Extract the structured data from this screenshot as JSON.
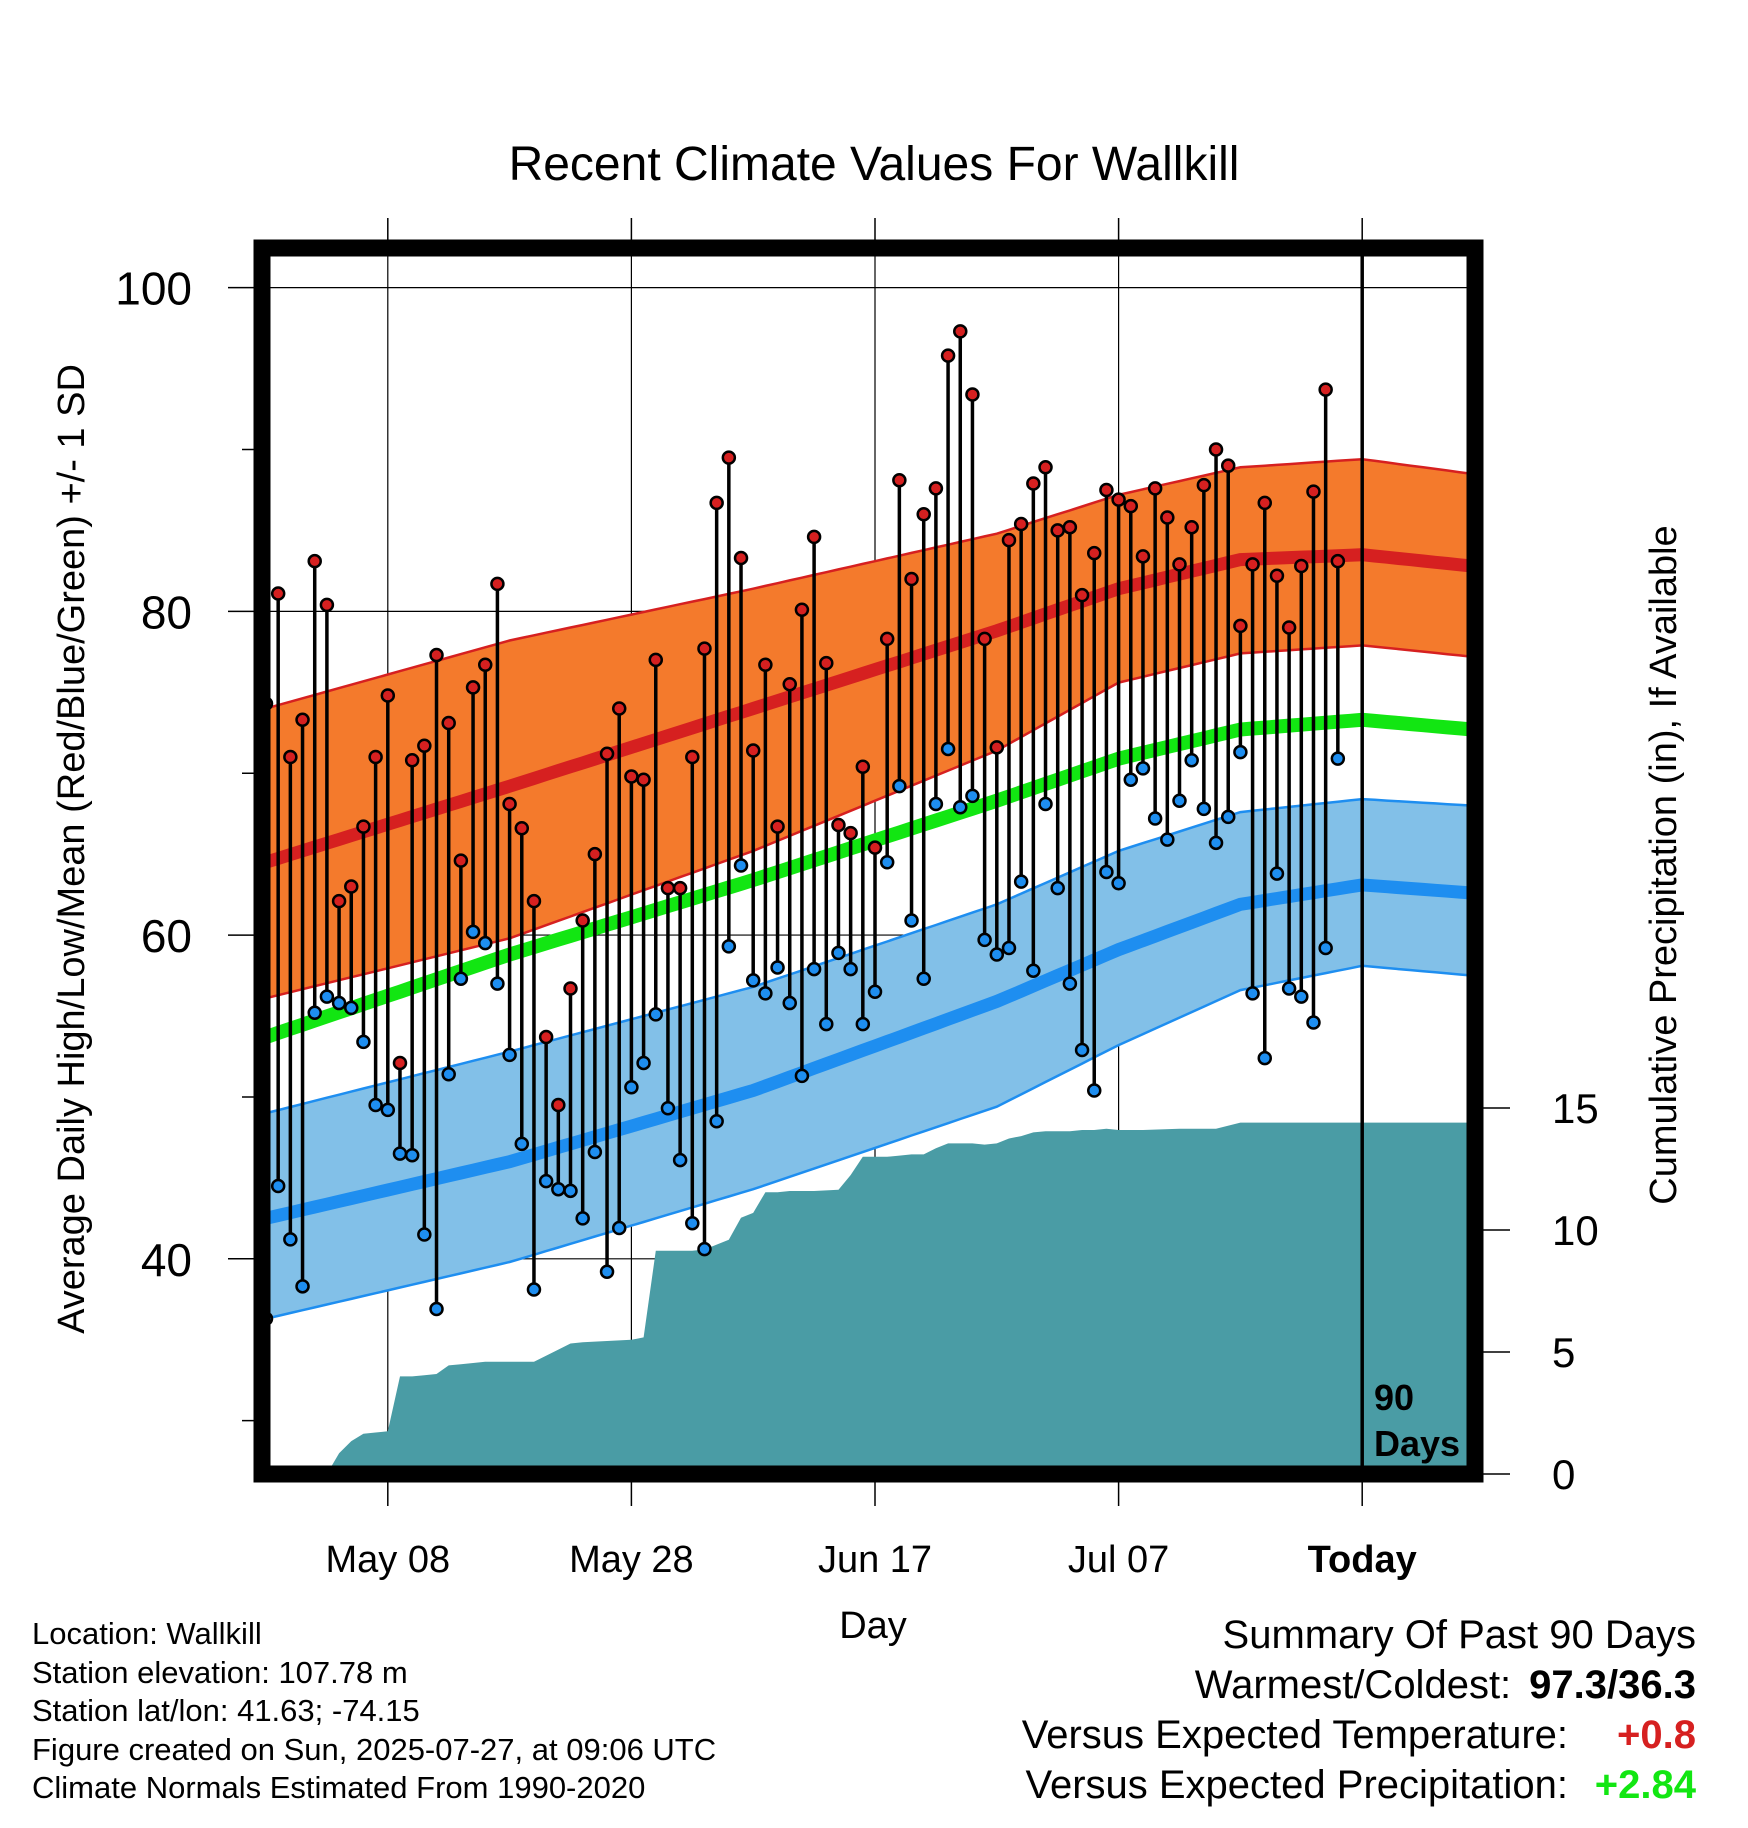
{
  "chart_data": {
    "type": "line",
    "title": "Recent Climate Values For Wallkill",
    "xlabel": "Day",
    "ylabel": "Average Daily High/Low/Mean (Red/Blue/Green) +/- 1 SD",
    "y2label": "Cumulative Precipitation (in), If Available",
    "x_ticks": [
      "May 08",
      "May 28",
      "Jun 17",
      "Jul 07",
      "Today"
    ],
    "y_ticks": [
      "40",
      "60",
      "80",
      "100"
    ],
    "y2_ticks": [
      "0",
      "5",
      "10",
      "15"
    ],
    "today_annotation": [
      "90",
      "Days"
    ],
    "ylim": [
      27,
      103
    ],
    "y2lim": [
      0,
      24.1
    ],
    "grid": true,
    "colors": {
      "high_band": "#f47a2c",
      "high_band_edge": "#d62020",
      "high_normal": "#d62020",
      "low_band": "#82c0e8",
      "low_band_edge": "#1e8ef0",
      "low_normal": "#1e8ef0",
      "mean_normal": "#12e612",
      "precip": "#4a9ca5",
      "high_dot": "#d62020",
      "low_dot": "#1e8ef0"
    },
    "normals": {
      "day_index": [
        0,
        20,
        40,
        60,
        70,
        80,
        90,
        99
      ],
      "high_mean": [
        64.5,
        69.2,
        74.0,
        78.8,
        81.4,
        83.2,
        83.5,
        82.8
      ],
      "high_upper": [
        74.0,
        78.2,
        81.4,
        84.8,
        87.2,
        88.9,
        89.4,
        88.5
      ],
      "high_lower": [
        56.1,
        59.8,
        65.2,
        71.4,
        75.6,
        77.4,
        77.9,
        77.2
      ],
      "mean_normal": [
        53.7,
        58.8,
        63.4,
        68.3,
        70.9,
        72.7,
        73.3,
        72.7
      ],
      "low_mean": [
        42.5,
        46.0,
        50.4,
        55.9,
        59.1,
        61.9,
        63.1,
        62.6
      ],
      "low_upper": [
        49.0,
        52.8,
        56.8,
        61.9,
        65.2,
        67.6,
        68.4,
        68.0
      ],
      "low_lower": [
        36.3,
        39.8,
        44.3,
        49.4,
        53.2,
        56.6,
        58.1,
        57.5
      ]
    },
    "daily_high": [
      74.3,
      81.1,
      71.0,
      73.3,
      83.1,
      80.4,
      62.1,
      63.0,
      66.7,
      71.0,
      74.8,
      52.1,
      70.8,
      71.7,
      77.3,
      73.1,
      64.6,
      75.3,
      76.7,
      81.7,
      68.1,
      66.6,
      62.1,
      53.7,
      49.5,
      56.7,
      60.9,
      65.0,
      71.2,
      74.0,
      69.8,
      69.6,
      77.0,
      62.9,
      62.9,
      71.0,
      77.7,
      86.7,
      89.5,
      83.3,
      71.4,
      76.7,
      66.7,
      75.5,
      80.1,
      84.6,
      76.8,
      66.8,
      66.3,
      70.4,
      65.4,
      78.3,
      88.1,
      82.0,
      86.0,
      87.6,
      95.8,
      97.3,
      93.4,
      78.3,
      71.6,
      84.4,
      85.4,
      87.9,
      88.9,
      85.0,
      85.2,
      81.0,
      83.6,
      87.5,
      86.9,
      86.5,
      83.4,
      87.6,
      85.8,
      82.9,
      85.2,
      87.8,
      90.0,
      89.0,
      79.1,
      82.9,
      86.7,
      82.2,
      79.0,
      82.8,
      87.4,
      93.7,
      83.1
    ],
    "daily_low": [
      36.3,
      44.5,
      41.2,
      38.3,
      55.2,
      56.2,
      55.8,
      55.5,
      53.4,
      49.5,
      49.2,
      46.5,
      46.4,
      41.5,
      36.9,
      51.4,
      57.3,
      60.2,
      59.5,
      57.0,
      52.6,
      47.1,
      38.1,
      44.8,
      44.3,
      44.2,
      42.5,
      46.6,
      39.2,
      41.9,
      50.6,
      52.1,
      55.1,
      49.3,
      46.1,
      42.2,
      40.6,
      48.5,
      59.3,
      64.3,
      57.2,
      56.4,
      58.0,
      55.8,
      51.3,
      57.9,
      54.5,
      58.9,
      57.9,
      54.5,
      56.5,
      64.5,
      69.2,
      60.9,
      57.3,
      68.1,
      71.5,
      67.9,
      68.6,
      59.7,
      58.8,
      59.2,
      63.3,
      57.8,
      68.1,
      62.9,
      57.0,
      52.9,
      50.4,
      63.9,
      63.2,
      69.6,
      70.3,
      67.2,
      65.9,
      68.3,
      70.8,
      67.8,
      65.7,
      67.3,
      71.3,
      56.4,
      52.4,
      63.8,
      56.7,
      56.2,
      54.6,
      59.2,
      70.9,
      66.2
    ]
  },
  "precip_cumulative": {
    "day_index": [
      5,
      6,
      7,
      8,
      9,
      10,
      11,
      12,
      13,
      14,
      15,
      16,
      17,
      18,
      20,
      21,
      22,
      24,
      25,
      26,
      28,
      30,
      31,
      32,
      33,
      34,
      35,
      36,
      38,
      39,
      40,
      41,
      42,
      43,
      45,
      47,
      48,
      49,
      50,
      51,
      52,
      53,
      54,
      55,
      56,
      58,
      59,
      60,
      61,
      62,
      63,
      64,
      65,
      66,
      67,
      68,
      69,
      70,
      72,
      75,
      76,
      78,
      80,
      85,
      90,
      99
    ],
    "values": [
      0.0,
      0.85,
      1.35,
      1.65,
      1.7,
      1.75,
      4.0,
      4.0,
      4.05,
      4.1,
      4.45,
      4.5,
      4.55,
      4.6,
      4.6,
      4.6,
      4.6,
      5.1,
      5.35,
      5.4,
      5.45,
      5.5,
      5.6,
      9.15,
      9.15,
      9.15,
      9.15,
      9.2,
      9.6,
      10.5,
      10.7,
      11.55,
      11.55,
      11.6,
      11.6,
      11.65,
      12.25,
      13.0,
      13.0,
      13.0,
      13.05,
      13.1,
      13.1,
      13.35,
      13.55,
      13.55,
      13.5,
      13.55,
      13.75,
      13.85,
      14.0,
      14.05,
      14.05,
      14.05,
      14.1,
      14.1,
      14.15,
      14.1,
      14.1,
      14.15,
      14.15,
      14.15,
      14.4,
      14.4,
      14.4,
      14.4
    ]
  },
  "info": {
    "location": "Location: Wallkill",
    "elevation": "Station elevation: 107.78 m",
    "latlon": "Station lat/lon: 41.63; -74.15",
    "created": "Figure created on Sun, 2025-07-27, at 09:06 UTC",
    "normals": "Climate Normals Estimated From 1990-2020"
  },
  "summary": {
    "heading": "Summary Of Past 90 Days",
    "warmest_coldest_label": "Warmest/Coldest:",
    "warmest_coldest_value": "97.3/36.3",
    "temp_label": "Versus Expected Temperature:",
    "temp_value": "+0.8",
    "temp_color": "#d62020",
    "precip_label": "Versus Expected Precipitation:",
    "precip_value": "+2.84",
    "precip_color": "#12e612"
  }
}
